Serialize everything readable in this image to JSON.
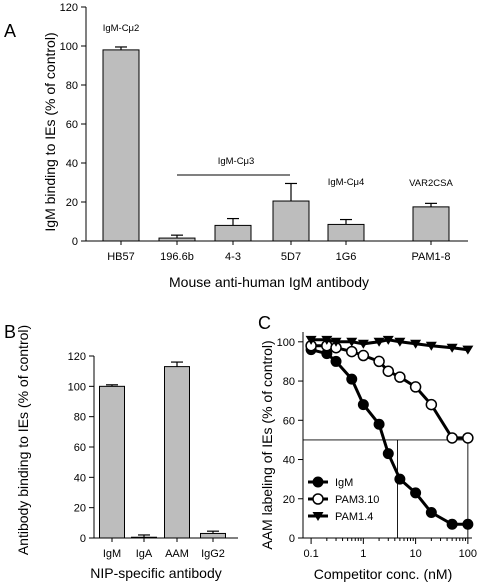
{
  "chart_data": [
    {
      "panel": "A",
      "type": "bar",
      "ylabel": "IgM binding to IEs (% of control)",
      "xlabel": "Mouse anti-human IgM antibody",
      "ylim": [
        0,
        120
      ],
      "yticks": [
        0,
        20,
        40,
        60,
        80,
        100,
        120
      ],
      "categories": [
        "HB57",
        "196.6b",
        "4-3",
        "5D7",
        "1G6",
        "PAM1-8"
      ],
      "values": [
        98,
        1.5,
        8,
        20.5,
        8.5,
        17.5
      ],
      "errors": [
        1.5,
        1.5,
        3.5,
        9,
        2.5,
        1.8
      ],
      "annotations": [
        {
          "text": "IgM-Cμ2",
          "group": [
            "HB57"
          ]
        },
        {
          "text": "IgM-Cμ3",
          "group": [
            "196.6b",
            "4-3",
            "5D7"
          ]
        },
        {
          "text": "IgM-Cμ4",
          "group": [
            "1G6"
          ]
        },
        {
          "text": "VAR2CSA",
          "group": [
            "PAM1-8"
          ]
        }
      ]
    },
    {
      "panel": "B",
      "type": "bar",
      "ylabel": "Antibody binding to IEs (% of control)",
      "xlabel": "NIP-specific antibody",
      "ylim": [
        0,
        120
      ],
      "yticks": [
        0,
        20,
        40,
        60,
        80,
        100,
        120
      ],
      "categories": [
        "IgM",
        "IgA",
        "AAM",
        "IgG2"
      ],
      "values": [
        100,
        0.5,
        113,
        3
      ],
      "errors": [
        1,
        1.5,
        3,
        1.5
      ]
    },
    {
      "panel": "C",
      "type": "line",
      "ylabel": "AAM labeling of IEs (% of control)",
      "xlabel": "Competitor conc. (nM)",
      "xscale": "log",
      "xlim": [
        0.07,
        120
      ],
      "ylim": [
        0,
        105
      ],
      "xticks": [
        "0.1",
        "1",
        "10",
        "100"
      ],
      "yticks": [
        0,
        20,
        40,
        60,
        80,
        100
      ],
      "legend_position": "bottom-left",
      "series": [
        {
          "name": "IgM",
          "marker": "filled-circle",
          "x": [
            0.1,
            0.2,
            0.3,
            0.6,
            1,
            2,
            3,
            5,
            10,
            20,
            50,
            100
          ],
          "y": [
            96,
            94,
            90,
            81,
            68,
            58,
            43,
            30,
            23,
            13,
            7,
            7
          ]
        },
        {
          "name": "PAM3.10",
          "marker": "open-circle",
          "x": [
            0.1,
            0.2,
            0.3,
            0.6,
            1,
            2,
            3,
            5,
            10,
            20,
            50,
            100
          ],
          "y": [
            98,
            98,
            97,
            95,
            93,
            90,
            85,
            82,
            77,
            68,
            51,
            51
          ]
        },
        {
          "name": "PAM1.4",
          "marker": "filled-triangle-down",
          "x": [
            0.1,
            0.2,
            0.3,
            0.6,
            1,
            2,
            3,
            5,
            10,
            20,
            50,
            100
          ],
          "y": [
            101,
            101,
            100,
            100,
            99,
            100,
            101,
            100,
            99,
            98,
            97,
            96
          ]
        }
      ],
      "reference_lines": {
        "y": 50,
        "x_values": [
          4.5,
          100
        ]
      }
    }
  ]
}
